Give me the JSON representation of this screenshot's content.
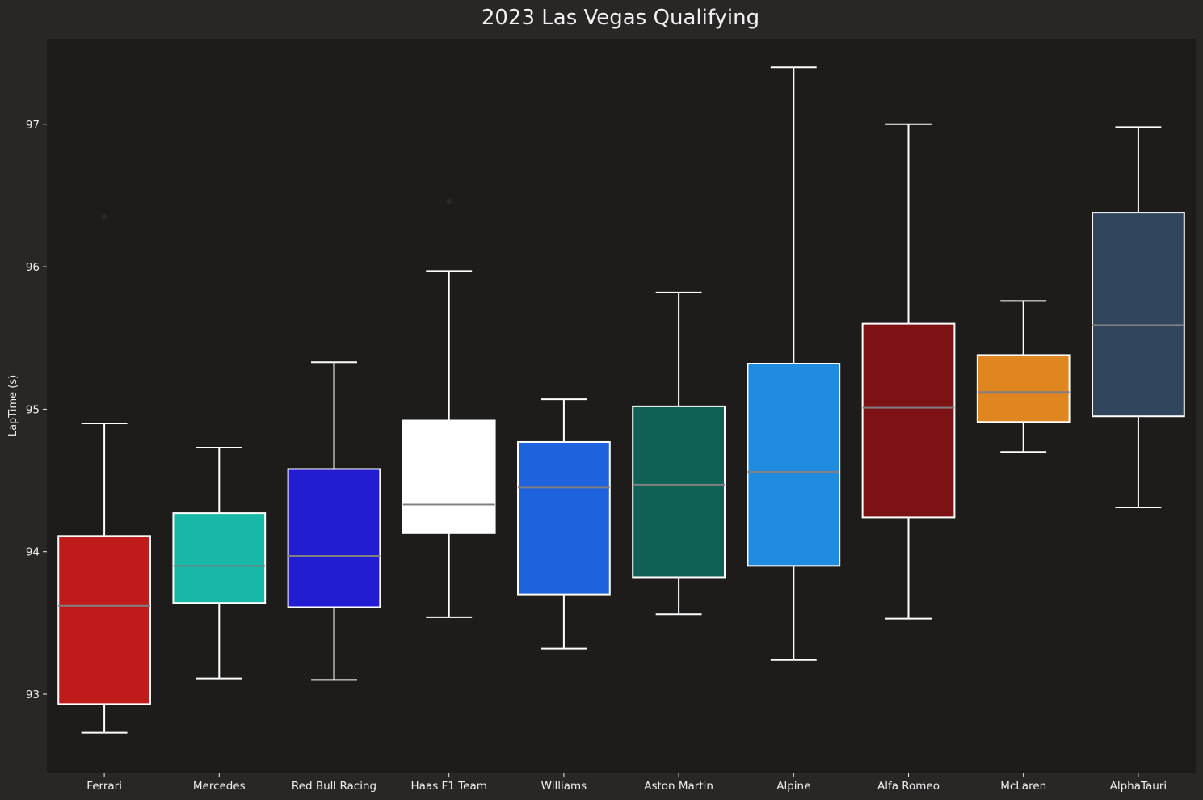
{
  "chart_data": {
    "type": "box",
    "title": "2023 Las Vegas Qualifying",
    "xlabel": "",
    "ylabel": "LapTime (s)",
    "ylim": [
      92.45,
      97.6
    ],
    "yticks": [
      93,
      94,
      95,
      96,
      97
    ],
    "grid": false,
    "legend": "none",
    "colors": {
      "figure_background": "#292625",
      "axes_background": "#1e1c1b",
      "text": "#f0f0f0",
      "whisker": "#ffffff",
      "median": "#808080"
    },
    "categories": [
      "Ferrari",
      "Mercedes",
      "Red Bull Racing",
      "Haas F1 Team",
      "Williams",
      "Aston Martin",
      "Alpine",
      "Alfa Romeo",
      "McLaren",
      "AlphaTauri"
    ],
    "boxes": [
      {
        "team": "Ferrari",
        "color": "#c01b1b",
        "whislo": 92.73,
        "q1": 92.93,
        "med": 93.62,
        "q3": 94.11,
        "whishi": 94.9,
        "fliers": [
          96.35
        ]
      },
      {
        "team": "Mercedes",
        "color": "#18b8a8",
        "whislo": 93.11,
        "q1": 93.64,
        "med": 93.9,
        "q3": 94.27,
        "whishi": 94.73,
        "fliers": []
      },
      {
        "team": "Red Bull Racing",
        "color": "#221cd2",
        "whislo": 93.1,
        "q1": 93.61,
        "med": 93.97,
        "q3": 94.58,
        "whishi": 95.33,
        "fliers": []
      },
      {
        "team": "Haas F1 Team",
        "color": "#ffffff",
        "whislo": 93.54,
        "q1": 94.13,
        "med": 94.33,
        "q3": 94.92,
        "whishi": 95.97,
        "fliers": [
          96.46
        ]
      },
      {
        "team": "Williams",
        "color": "#1e62de",
        "whislo": 93.32,
        "q1": 93.7,
        "med": 94.45,
        "q3": 94.77,
        "whishi": 95.07,
        "fliers": []
      },
      {
        "team": "Aston Martin",
        "color": "#0f6055",
        "whislo": 93.56,
        "q1": 93.82,
        "med": 94.47,
        "q3": 95.02,
        "whishi": 95.82,
        "fliers": []
      },
      {
        "team": "Alpine",
        "color": "#1f8ce0",
        "whislo": 93.24,
        "q1": 93.9,
        "med": 94.56,
        "q3": 95.32,
        "whishi": 97.4,
        "fliers": []
      },
      {
        "team": "Alfa Romeo",
        "color": "#7c1214",
        "whislo": 93.53,
        "q1": 94.24,
        "med": 95.01,
        "q3": 95.6,
        "whishi": 97.0,
        "fliers": []
      },
      {
        "team": "McLaren",
        "color": "#df8620",
        "whislo": 94.7,
        "q1": 94.91,
        "med": 95.12,
        "q3": 95.38,
        "whishi": 95.76,
        "fliers": []
      },
      {
        "team": "AlphaTauri",
        "color": "#31455d",
        "whislo": 94.31,
        "q1": 94.95,
        "med": 95.59,
        "q3": 96.38,
        "whishi": 96.98,
        "fliers": []
      }
    ]
  }
}
